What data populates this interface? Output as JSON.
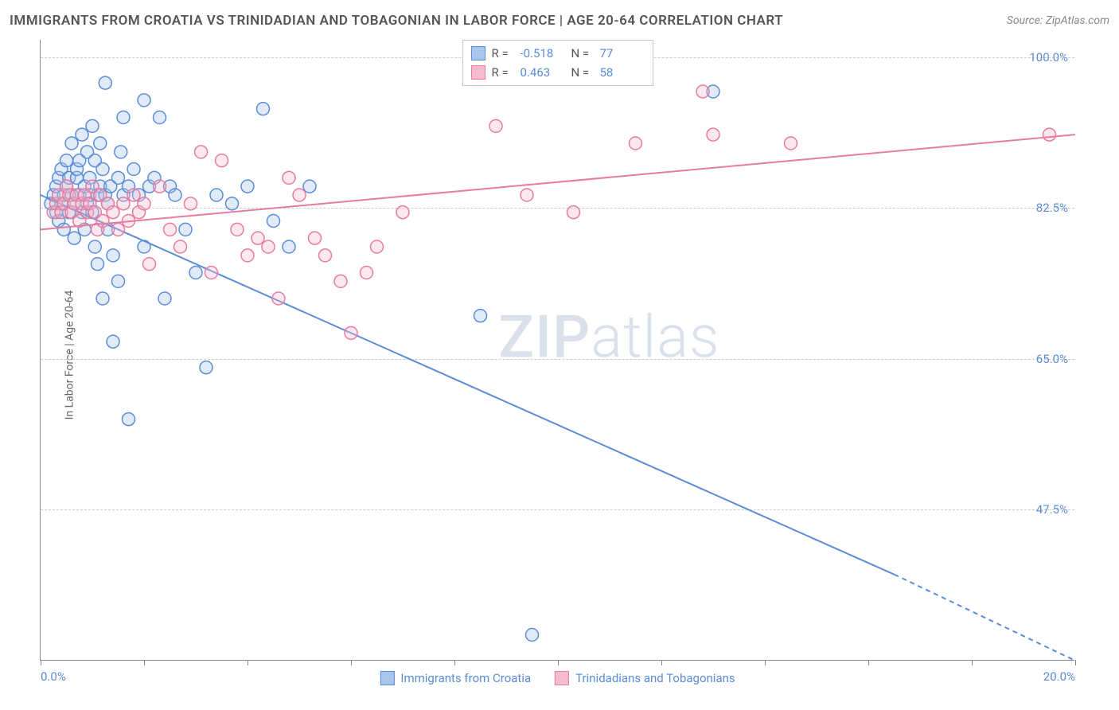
{
  "title": "IMMIGRANTS FROM CROATIA VS TRINIDADIAN AND TOBAGONIAN IN LABOR FORCE | AGE 20-64 CORRELATION CHART",
  "source": "Source: ZipAtlas.com",
  "y_axis_label": "In Labor Force | Age 20-64",
  "watermark_a": "ZIP",
  "watermark_b": "atlas",
  "chart": {
    "type": "scatter",
    "xlim": [
      0.0,
      20.0
    ],
    "ylim": [
      30.0,
      102.0
    ],
    "x_ticks": [
      0.0,
      2.0,
      4.0,
      6.0,
      8.0,
      10.0,
      12.0,
      14.0,
      16.0,
      18.0,
      20.0
    ],
    "x_tick_labels_shown": {
      "0": "0.0%",
      "20": "20.0%"
    },
    "y_gridlines": [
      47.5,
      65.0,
      82.5,
      100.0
    ],
    "y_tick_labels": [
      "47.5%",
      "65.0%",
      "82.5%",
      "100.0%"
    ],
    "background_color": "#ffffff",
    "grid_color": "#cccccc",
    "axis_color": "#888888",
    "label_color": "#5b8dd6",
    "marker_radius": 8,
    "marker_fill_opacity": 0.35,
    "marker_stroke_width": 1.5,
    "line_width": 2
  },
  "series": [
    {
      "name": "Immigrants from Croatia",
      "color_stroke": "#5b8dd6",
      "color_fill": "#a9c5ea",
      "R": "-0.518",
      "N": "77",
      "trend": {
        "x1": 0.0,
        "y1": 84.0,
        "x2": 16.5,
        "y2": 40.0,
        "extend_x2": 20.0,
        "extend_y2": 30.0
      },
      "points": [
        [
          0.2,
          83
        ],
        [
          0.25,
          84
        ],
        [
          0.3,
          85
        ],
        [
          0.3,
          82
        ],
        [
          0.35,
          86
        ],
        [
          0.35,
          81
        ],
        [
          0.4,
          87
        ],
        [
          0.4,
          83
        ],
        [
          0.45,
          84
        ],
        [
          0.45,
          80
        ],
        [
          0.5,
          88
        ],
        [
          0.5,
          85
        ],
        [
          0.55,
          82
        ],
        [
          0.55,
          86
        ],
        [
          0.6,
          84
        ],
        [
          0.6,
          90
        ],
        [
          0.65,
          83
        ],
        [
          0.65,
          79
        ],
        [
          0.7,
          86
        ],
        [
          0.7,
          87
        ],
        [
          0.75,
          84
        ],
        [
          0.75,
          88
        ],
        [
          0.8,
          82
        ],
        [
          0.8,
          91
        ],
        [
          0.85,
          85
        ],
        [
          0.85,
          80
        ],
        [
          0.9,
          89
        ],
        [
          0.9,
          83
        ],
        [
          0.95,
          84
        ],
        [
          0.95,
          86
        ],
        [
          1.0,
          92
        ],
        [
          1.0,
          82
        ],
        [
          1.05,
          78
        ],
        [
          1.05,
          88
        ],
        [
          1.1,
          84
        ],
        [
          1.1,
          76
        ],
        [
          1.15,
          85
        ],
        [
          1.15,
          90
        ],
        [
          1.2,
          87
        ],
        [
          1.2,
          72
        ],
        [
          1.25,
          84
        ],
        [
          1.25,
          97
        ],
        [
          1.3,
          83
        ],
        [
          1.3,
          80
        ],
        [
          1.35,
          85
        ],
        [
          1.4,
          77
        ],
        [
          1.4,
          67
        ],
        [
          1.5,
          86
        ],
        [
          1.5,
          74
        ],
        [
          1.55,
          89
        ],
        [
          1.6,
          84
        ],
        [
          1.6,
          93
        ],
        [
          1.7,
          85
        ],
        [
          1.7,
          58
        ],
        [
          1.8,
          87
        ],
        [
          1.9,
          84
        ],
        [
          2.0,
          95
        ],
        [
          2.0,
          78
        ],
        [
          2.1,
          85
        ],
        [
          2.2,
          86
        ],
        [
          2.3,
          93
        ],
        [
          2.4,
          72
        ],
        [
          2.5,
          85
        ],
        [
          2.6,
          84
        ],
        [
          2.8,
          80
        ],
        [
          3.0,
          75
        ],
        [
          3.2,
          64
        ],
        [
          3.4,
          84
        ],
        [
          3.7,
          83
        ],
        [
          4.0,
          85
        ],
        [
          4.3,
          94
        ],
        [
          4.5,
          81
        ],
        [
          4.8,
          78
        ],
        [
          5.2,
          85
        ],
        [
          8.5,
          70
        ],
        [
          9.5,
          33
        ],
        [
          13.0,
          96
        ]
      ]
    },
    {
      "name": "Trinidadians and Tobagonians",
      "color_stroke": "#e77ba0",
      "color_fill": "#f5bccf",
      "R": "0.463",
      "N": "58",
      "trend": {
        "x1": 0.0,
        "y1": 80.0,
        "x2": 20.0,
        "y2": 91.0
      },
      "points": [
        [
          0.25,
          82
        ],
        [
          0.3,
          83
        ],
        [
          0.35,
          84
        ],
        [
          0.4,
          82
        ],
        [
          0.45,
          83
        ],
        [
          0.5,
          85
        ],
        [
          0.55,
          84
        ],
        [
          0.6,
          82
        ],
        [
          0.65,
          83
        ],
        [
          0.7,
          84
        ],
        [
          0.75,
          81
        ],
        [
          0.8,
          83
        ],
        [
          0.85,
          84
        ],
        [
          0.9,
          82
        ],
        [
          0.95,
          83
        ],
        [
          1.0,
          85
        ],
        [
          1.05,
          82
        ],
        [
          1.1,
          80
        ],
        [
          1.15,
          84
        ],
        [
          1.2,
          81
        ],
        [
          1.3,
          83
        ],
        [
          1.4,
          82
        ],
        [
          1.5,
          80
        ],
        [
          1.6,
          83
        ],
        [
          1.7,
          81
        ],
        [
          1.8,
          84
        ],
        [
          1.9,
          82
        ],
        [
          2.0,
          83
        ],
        [
          2.1,
          76
        ],
        [
          2.3,
          85
        ],
        [
          2.5,
          80
        ],
        [
          2.7,
          78
        ],
        [
          2.9,
          83
        ],
        [
          3.1,
          89
        ],
        [
          3.3,
          75
        ],
        [
          3.5,
          88
        ],
        [
          3.8,
          80
        ],
        [
          4.0,
          77
        ],
        [
          4.2,
          79
        ],
        [
          4.4,
          78
        ],
        [
          4.6,
          72
        ],
        [
          4.8,
          86
        ],
        [
          5.0,
          84
        ],
        [
          5.3,
          79
        ],
        [
          5.5,
          77
        ],
        [
          5.8,
          74
        ],
        [
          6.0,
          68
        ],
        [
          6.3,
          75
        ],
        [
          6.5,
          78
        ],
        [
          7.0,
          82
        ],
        [
          8.8,
          92
        ],
        [
          9.4,
          84
        ],
        [
          10.3,
          82
        ],
        [
          11.5,
          90
        ],
        [
          12.8,
          96
        ],
        [
          13.0,
          91
        ],
        [
          14.5,
          90
        ],
        [
          19.5,
          91
        ]
      ]
    }
  ],
  "legend_labels": {
    "R": "R =",
    "N": "N ="
  }
}
